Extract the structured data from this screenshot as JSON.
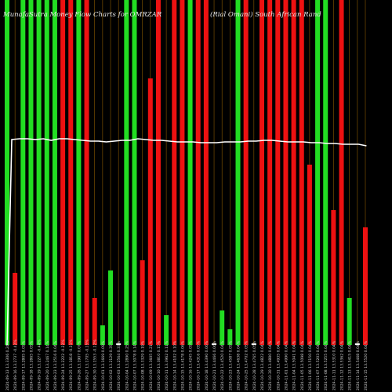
{
  "header": {
    "left_title": "MunafaSutra Money Flow Charts for OMRZAR",
    "right_title": "(Rial Omani) South African Rand"
  },
  "chart_data": {
    "type": "bar",
    "title": "MunafaSutra Money Flow Charts for OMRZAR (Rial Omani) South African Rand",
    "ylim": [
      0,
      440
    ],
    "grid": false,
    "legend": "none",
    "colors": {
      "up": "#22dd22",
      "down": "#ee1111",
      "neutral": "#ffffff",
      "gridline": "#8a5a00",
      "line": "#ffffff"
    },
    "categories": [
      "2024-09-13 13.3306 0.24%",
      "2024-09-16 13.2737 -0.42%",
      "2024-09-17 13.2805 0.05%",
      "2024-09-18 13.2865 0.05%",
      "2024-09-19 13.2277 -0.44%",
      "2024-09-20 13.2467 0.14%",
      "2024-09-23 13.2516 0.04%",
      "2024-09-24 13.2222 -0.22%",
      "2024-09-25 13.1818 -0.31%",
      "2024-09-26 13.1907 0.07%",
      "2024-09-27 13.1705 -0.15%",
      "2024-09-30 13.1553 -0.12%",
      "2024-10-01 13.1669 0.09%",
      "2024-10-02 13.2129 0.35%",
      "2024-10-03 13.2564 0.33%",
      "2024-10-04 13.2890 0.25%",
      "2024-10-07 13.3078 0.14%",
      "2024-10-08 13.3329 0.19%",
      "2024-10-09 13.3605 0.21%",
      "2024-10-10 13.3810 0.15%",
      "2024-10-11 13.3962 0.11%",
      "2024-10-14 13.4102 0.10%",
      "2024-10-15 13.4178 0.06%",
      "2024-10-16 13.4245 0.05%",
      "2024-10-17 13.4316 0.05%",
      "2024-10-18 13.4390 0.06%",
      "2024-10-21 13.4466 0.06%",
      "2024-10-22 13.4520 0.04%",
      "2024-10-23 13.4587 0.05%",
      "2024-10-24 13.4638 0.04%",
      "2024-10-25 13.4702 0.05%",
      "2024-10-28 13.4765 0.05%",
      "2024-10-29 13.4822 0.04%",
      "2024-10-30 13.4880 0.04%",
      "2024-10-31 13.4935 0.04%",
      "2024-11-01 13.4990 0.04%",
      "2024-11-04 13.5041 0.04%",
      "2024-11-05 13.5098 0.04%",
      "2024-11-06 13.5150 0.04%",
      "2024-11-07 13.5203 0.04%",
      "2024-11-08 13.5255 0.04%",
      "2024-11-11 13.5310 0.04%",
      "2024-11-12 13.5362 0.04%",
      "2024-11-13 13.5415 0.04%",
      "2024-11-14 13.5468 0.04%",
      "2024-11-15 13.5520 0.04%"
    ],
    "series": [
      {
        "values": [
          440,
          92,
          440,
          440,
          440,
          440,
          440,
          440,
          440,
          440,
          440,
          60,
          25,
          95,
          2,
          440,
          440,
          108,
          340,
          440,
          38,
          440,
          440,
          440,
          440,
          440,
          2,
          44,
          20,
          440,
          440,
          2,
          440,
          440,
          440,
          440,
          440,
          440,
          230,
          440,
          440,
          172,
          440,
          60,
          2,
          150
        ],
        "directions": [
          "up",
          "down",
          "up",
          "up",
          "up",
          "up",
          "up",
          "down",
          "down",
          "up",
          "down",
          "down",
          "up",
          "up",
          "neutral",
          "up",
          "up",
          "down",
          "down",
          "down",
          "up",
          "down",
          "down",
          "up",
          "down",
          "down",
          "neutral",
          "up",
          "up",
          "up",
          "down",
          "neutral",
          "down",
          "down",
          "down",
          "down",
          "down",
          "down",
          "down",
          "up",
          "up",
          "down",
          "down",
          "up",
          "neutral",
          "down"
        ]
      },
      {
        "name": "",
        "line_values": [
          262,
          263,
          263,
          262,
          263,
          261,
          263,
          263,
          262,
          261,
          260,
          260,
          259,
          260,
          261,
          261,
          263,
          262,
          261,
          261,
          260,
          259,
          259,
          259,
          258,
          258,
          258,
          259,
          259,
          259,
          260,
          260,
          261,
          261,
          260,
          259,
          259,
          259,
          258,
          258,
          257,
          257,
          256,
          256,
          256,
          254
        ]
      }
    ]
  }
}
